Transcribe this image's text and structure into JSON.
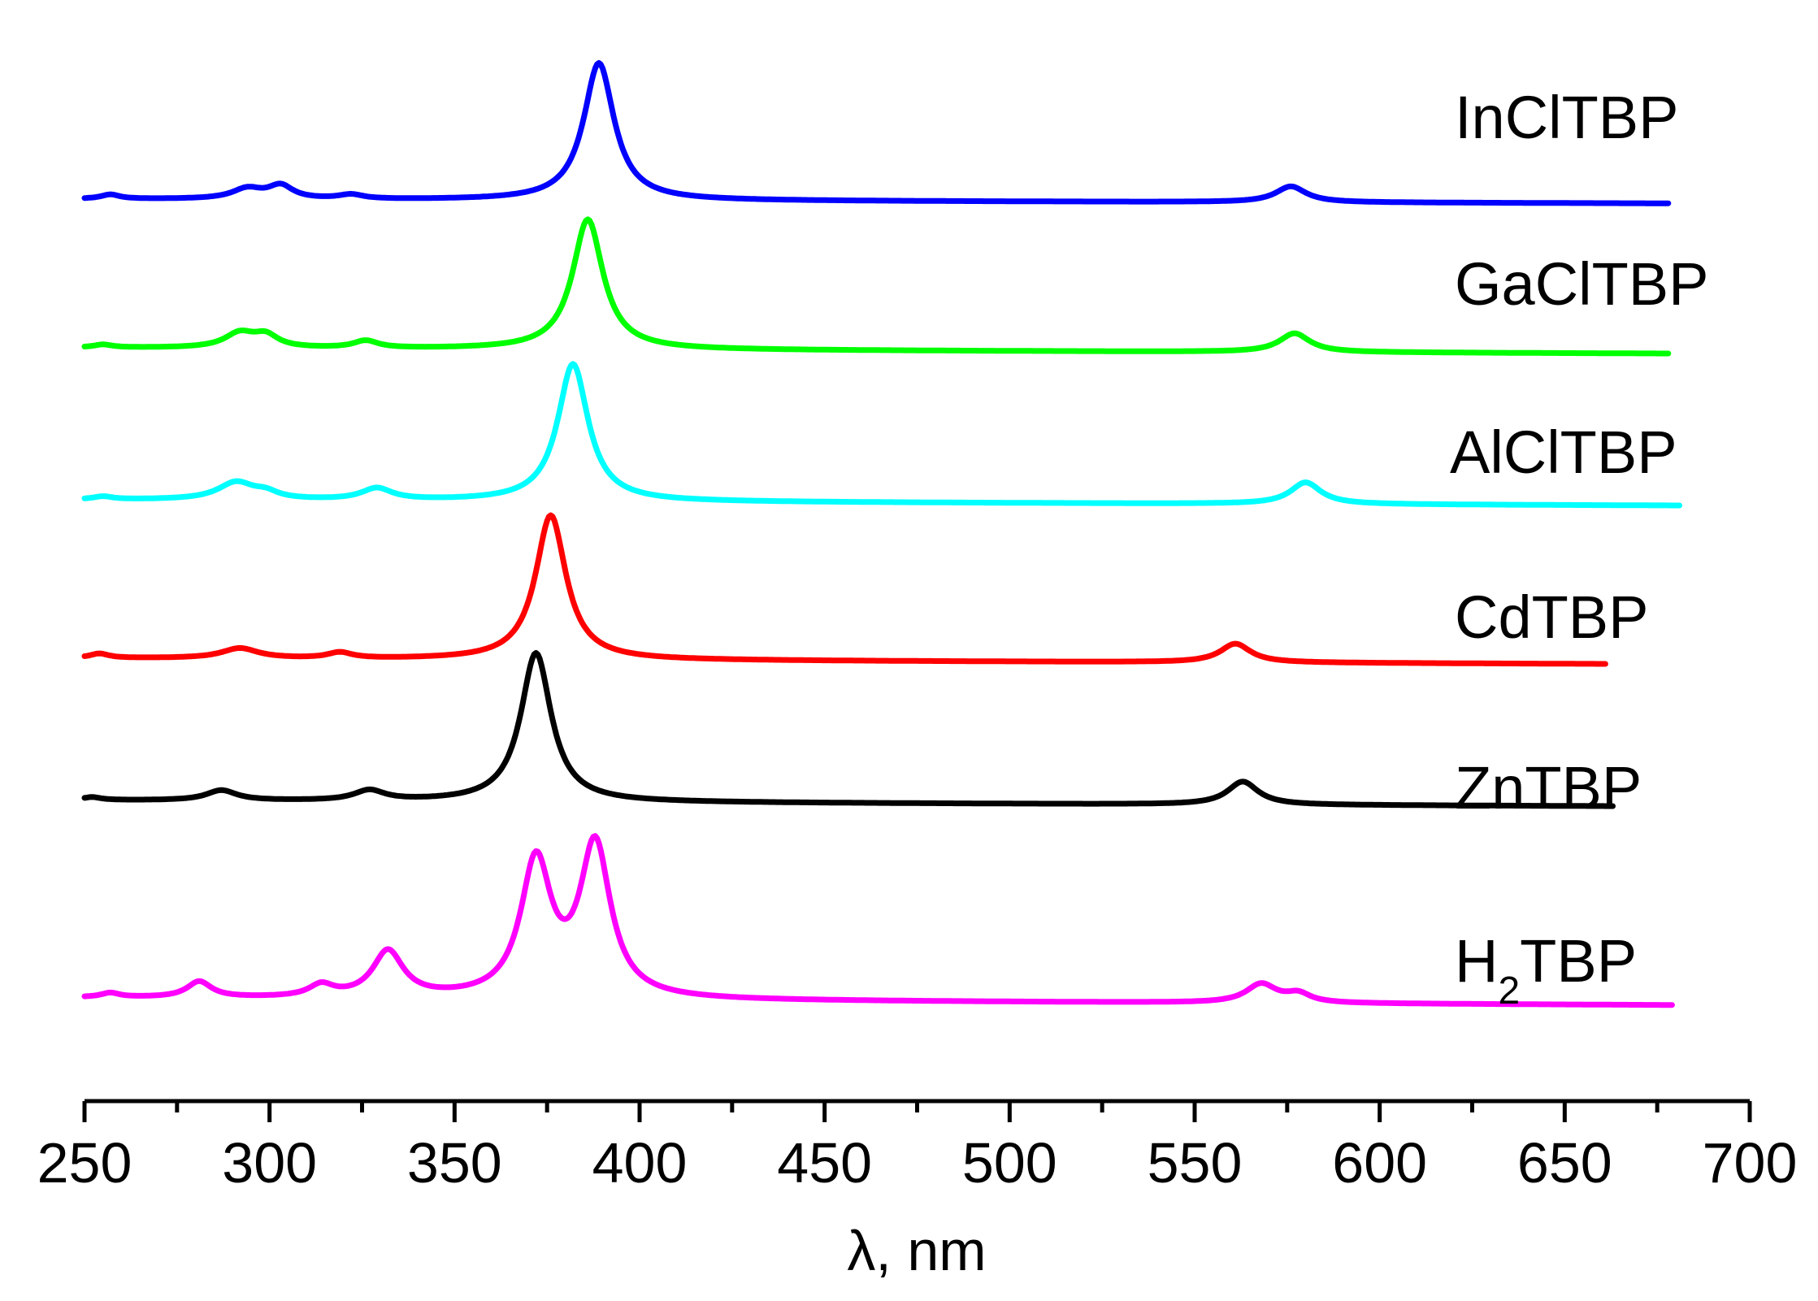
{
  "chart_data": {
    "type": "line",
    "xlabel": "λ, nm",
    "ylabel": "",
    "xlim": [
      250,
      700
    ],
    "x_ticks": [
      250,
      300,
      350,
      400,
      450,
      500,
      550,
      600,
      650,
      700
    ],
    "y_axis_shown": false,
    "grid": false,
    "legend": "inline labels at right of each curve",
    "layout": "vertically offset stacked spectra",
    "series": [
      {
        "name": "InClTBP",
        "label_sub": "",
        "label_tail": "",
        "color": "#0000ff",
        "x_range": [
          250,
          678
        ],
        "baseline_start": 0.0,
        "baseline_end": -0.03,
        "peaks": [
          [
            257,
            0.03,
            3
          ],
          [
            294,
            0.07,
            5
          ],
          [
            303,
            0.09,
            4
          ],
          [
            322,
            0.03,
            4
          ],
          [
            389,
            0.95,
            5
          ],
          [
            576,
            0.11,
            5
          ]
        ]
      },
      {
        "name": "GaClTBP",
        "label_sub": "",
        "label_tail": "",
        "color": "#00ff00",
        "x_range": [
          250,
          678
        ],
        "baseline_start": 0.0,
        "baseline_end": -0.04,
        "peaks": [
          [
            255,
            0.02,
            3
          ],
          [
            292,
            0.1,
            5
          ],
          [
            299,
            0.08,
            4
          ],
          [
            326,
            0.05,
            4
          ],
          [
            386,
            0.9,
            5
          ],
          [
            577,
            0.13,
            5
          ]
        ]
      },
      {
        "name": "AlClTBP",
        "label_sub": "",
        "label_tail": "",
        "color": "#00ffff",
        "x_range": [
          250,
          681
        ],
        "baseline_start": 0.0,
        "baseline_end": -0.04,
        "peaks": [
          [
            255,
            0.02,
            3
          ],
          [
            291,
            0.12,
            6
          ],
          [
            299,
            0.04,
            4
          ],
          [
            329,
            0.08,
            5
          ],
          [
            382,
            0.95,
            5
          ],
          [
            580,
            0.15,
            5
          ]
        ]
      },
      {
        "name": "CdTBP",
        "label_sub": "",
        "label_tail": "",
        "color": "#ff0000",
        "x_range": [
          250,
          661
        ],
        "baseline_start": 0.0,
        "baseline_end": -0.04,
        "peaks": [
          [
            254,
            0.03,
            3
          ],
          [
            292,
            0.07,
            6
          ],
          [
            319,
            0.04,
            4
          ],
          [
            376,
            1.0,
            5
          ],
          [
            561,
            0.13,
            5
          ]
        ]
      },
      {
        "name": "ZnTBP",
        "label_sub": "",
        "label_tail": "",
        "color": "#000000",
        "x_range": [
          250,
          663
        ],
        "baseline_start": 0.0,
        "baseline_end": -0.04,
        "peaks": [
          [
            252,
            0.02,
            3
          ],
          [
            287,
            0.07,
            5
          ],
          [
            327,
            0.07,
            5
          ],
          [
            372,
            1.03,
            5
          ],
          [
            563,
            0.16,
            5
          ]
        ]
      },
      {
        "name": "H2TBP",
        "label_main": "H",
        "label_sub": "2",
        "label_tail": "TBP",
        "color": "#ff00ff",
        "x_range": [
          250,
          679
        ],
        "baseline_start": 0.0,
        "baseline_end": -0.05,
        "peaks": [
          [
            257,
            0.03,
            3
          ],
          [
            281,
            0.11,
            4
          ],
          [
            314,
            0.08,
            4
          ],
          [
            332,
            0.32,
            5
          ],
          [
            372,
            0.93,
            5
          ],
          [
            388,
            1.05,
            5
          ],
          [
            568,
            0.13,
            5
          ],
          [
            578,
            0.06,
            4
          ]
        ]
      }
    ]
  }
}
